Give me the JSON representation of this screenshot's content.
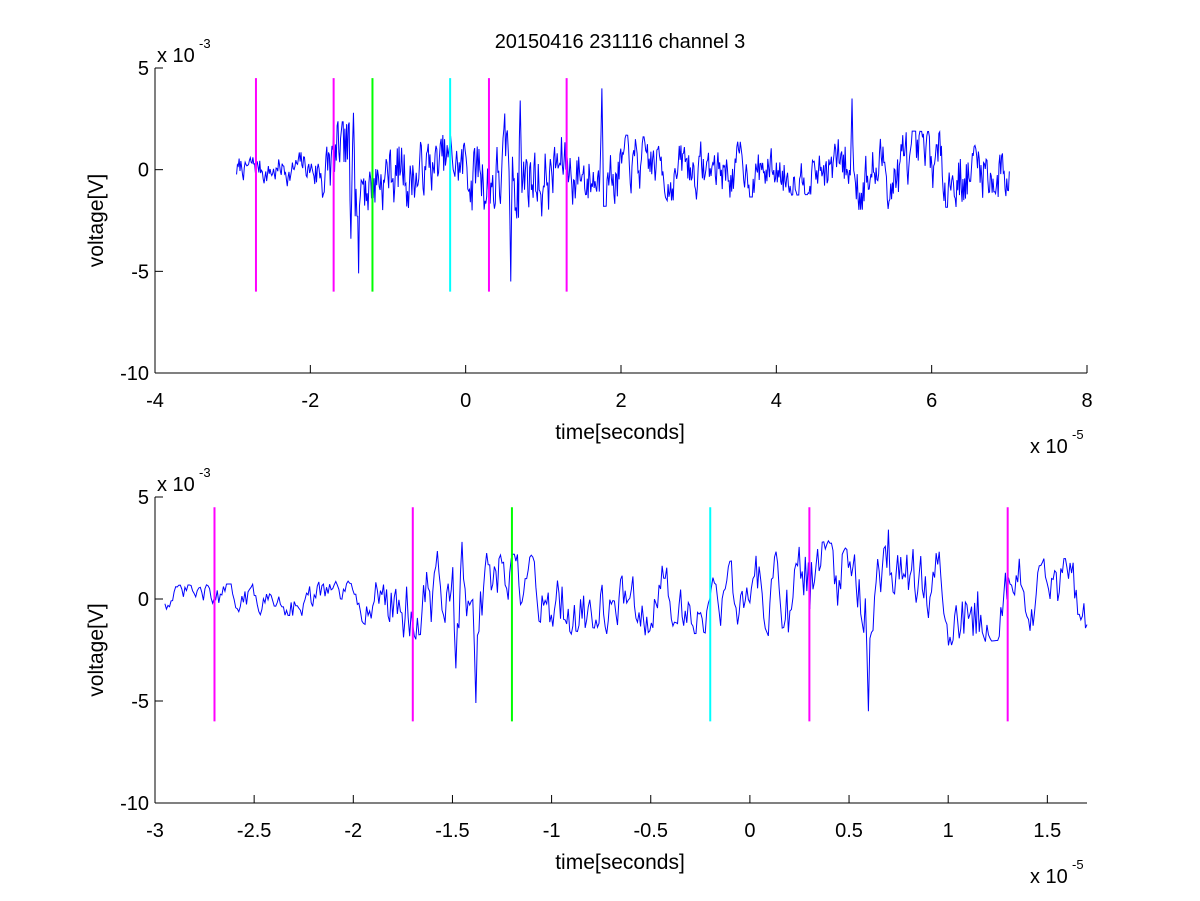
{
  "figure_title": "20150416 231116 channel 3",
  "chart_data": [
    {
      "type": "line",
      "title": "20150416 231116 channel 3",
      "xlabel": "time[seconds]",
      "ylabel": "voltage[V]",
      "x_exponent_label": "x 10",
      "x_exponent": "-5",
      "y_exponent_label": "x 10",
      "y_exponent": "-3",
      "xlim": [
        -4,
        8
      ],
      "ylim": [
        -10,
        5
      ],
      "x_ticks": [
        -4,
        -2,
        0,
        2,
        4,
        6,
        8
      ],
      "x_tick_labels": [
        "-4",
        "-2",
        "0",
        "2",
        "4",
        "6",
        "8"
      ],
      "y_ticks": [
        -10,
        -5,
        0,
        5
      ],
      "y_tick_labels": [
        "-10",
        "-5",
        "0",
        "5"
      ],
      "grid": false,
      "signal": {
        "color": "#0000ff",
        "x_range": [
          -2.95,
          7.0
        ],
        "envelope": [
          {
            "x": -2.95,
            "amp": 0.6
          },
          {
            "x": -2.0,
            "amp": 0.8
          },
          {
            "x": -1.75,
            "amp": 2.2
          },
          {
            "x": -1.2,
            "amp": 2.0
          },
          {
            "x": -0.2,
            "amp": 1.5
          },
          {
            "x": 0.4,
            "amp": 2.6
          },
          {
            "x": 1.3,
            "amp": 1.8
          },
          {
            "x": 2.5,
            "amp": 1.4
          },
          {
            "x": 4.5,
            "amp": 1.1
          },
          {
            "x": 5.0,
            "amp": 1.8
          },
          {
            "x": 7.0,
            "amp": 1.6
          }
        ],
        "peaks": [
          {
            "x": -1.38,
            "y": -5.1
          },
          {
            "x": -1.48,
            "y": -3.4
          },
          {
            "x": -1.45,
            "y": 2.8
          },
          {
            "x": 0.58,
            "y": -5.5
          },
          {
            "x": 0.7,
            "y": 3.4
          },
          {
            "x": 1.75,
            "y": 4.0
          },
          {
            "x": 4.98,
            "y": 3.5
          }
        ]
      },
      "markers": [
        {
          "x": -2.7,
          "y0": -6,
          "y1": 4.5,
          "color": "#ff00ff"
        },
        {
          "x": -1.7,
          "y0": -6,
          "y1": 4.5,
          "color": "#ff00ff"
        },
        {
          "x": -1.2,
          "y0": -6,
          "y1": 4.5,
          "color": "#00ff00"
        },
        {
          "x": -0.2,
          "y0": -6,
          "y1": 4.5,
          "color": "#00ffff"
        },
        {
          "x": 0.3,
          "y0": -6,
          "y1": 4.5,
          "color": "#ff00ff"
        },
        {
          "x": 1.3,
          "y0": -6,
          "y1": 4.5,
          "color": "#ff00ff"
        }
      ]
    },
    {
      "type": "line",
      "title": "",
      "xlabel": "time[seconds]",
      "ylabel": "voltage[V]",
      "x_exponent_label": "x 10",
      "x_exponent": "-5",
      "y_exponent_label": "x 10",
      "y_exponent": "-3",
      "xlim": [
        -3.0,
        1.7
      ],
      "ylim": [
        -10,
        5
      ],
      "x_ticks": [
        -3,
        -2.5,
        -2,
        -1.5,
        -1,
        -0.5,
        0,
        0.5,
        1,
        1.5
      ],
      "x_tick_labels": [
        "-3",
        "-2.5",
        "-2",
        "-1.5",
        "-1",
        "-0.5",
        "0",
        "0.5",
        "1",
        "1.5"
      ],
      "y_ticks": [
        -10,
        -5,
        0,
        5
      ],
      "y_tick_labels": [
        "-10",
        "-5",
        "0",
        "5"
      ],
      "grid": false,
      "signal": {
        "color": "#0000ff",
        "x_range": [
          -2.95,
          1.7
        ],
        "envelope": [
          {
            "x": -2.95,
            "amp": 0.6
          },
          {
            "x": -2.0,
            "amp": 0.8
          },
          {
            "x": -1.75,
            "amp": 2.2
          },
          {
            "x": -1.2,
            "amp": 2.0
          },
          {
            "x": -0.2,
            "amp": 1.5
          },
          {
            "x": 0.4,
            "amp": 2.6
          },
          {
            "x": 1.3,
            "amp": 1.8
          },
          {
            "x": 1.7,
            "amp": 1.8
          }
        ],
        "peaks": [
          {
            "x": -1.38,
            "y": -5.1
          },
          {
            "x": -1.48,
            "y": -3.4
          },
          {
            "x": -1.45,
            "y": 2.8
          },
          {
            "x": 0.6,
            "y": -5.5
          },
          {
            "x": 0.7,
            "y": 3.4
          }
        ]
      },
      "markers": [
        {
          "x": -2.7,
          "y0": -6,
          "y1": 4.5,
          "color": "#ff00ff"
        },
        {
          "x": -1.7,
          "y0": -6,
          "y1": 4.5,
          "color": "#ff00ff"
        },
        {
          "x": -1.2,
          "y0": -6,
          "y1": 4.5,
          "color": "#00ff00"
        },
        {
          "x": -0.2,
          "y0": -6,
          "y1": 4.5,
          "color": "#00ffff"
        },
        {
          "x": 0.3,
          "y0": -6,
          "y1": 4.5,
          "color": "#ff00ff"
        },
        {
          "x": 1.3,
          "y0": -6,
          "y1": 4.5,
          "color": "#ff00ff"
        }
      ]
    }
  ]
}
